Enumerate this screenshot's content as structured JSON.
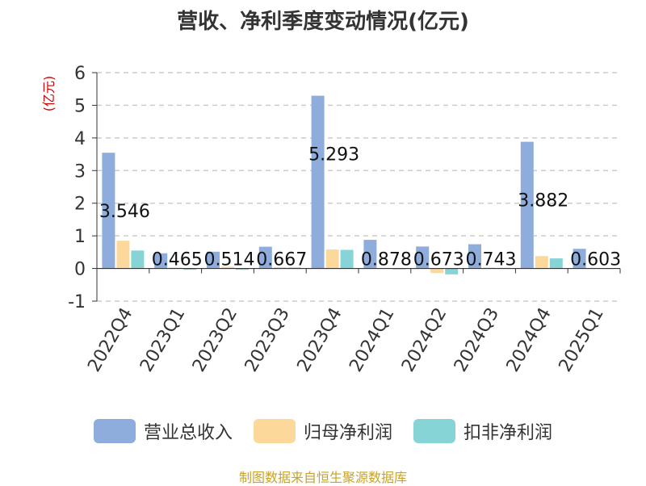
{
  "chart_data": {
    "type": "bar",
    "title": "营收、净利季度变动情况(亿元)",
    "ylabel": "(亿元)",
    "ylim": [
      -1,
      6
    ],
    "yticks": [
      6,
      5,
      4,
      3,
      2,
      1,
      0,
      -1
    ],
    "grid": true,
    "legend_position": "bottom",
    "categories": [
      "2022Q4",
      "2023Q1",
      "2023Q2",
      "2023Q3",
      "2023Q4",
      "2024Q1",
      "2024Q2",
      "2024Q3",
      "2024Q4",
      "2025Q1"
    ],
    "series": [
      {
        "name": "营业总收入",
        "color": "#8eaddc",
        "values": [
          3.546,
          0.465,
          0.514,
          0.667,
          5.293,
          0.878,
          0.673,
          0.743,
          3.882,
          0.603
        ]
      },
      {
        "name": "归母净利润",
        "color": "#fcd89a",
        "values": [
          0.85,
          0.03,
          0.05,
          0.04,
          0.58,
          0.02,
          -0.14,
          0.03,
          0.38,
          0.02
        ]
      },
      {
        "name": "扣非净利润",
        "color": "#86d4d6",
        "values": [
          0.55,
          -0.04,
          -0.04,
          0.03,
          0.57,
          -0.01,
          -0.18,
          0.02,
          0.31,
          0.01
        ]
      }
    ],
    "data_labels": [
      "3.546",
      "0.465",
      "0.514",
      "0.667",
      "5.293",
      "0.878",
      "0.673",
      "0.743",
      "3.882",
      "0.603"
    ]
  },
  "source_note": "制图数据来自恒生聚源数据库"
}
